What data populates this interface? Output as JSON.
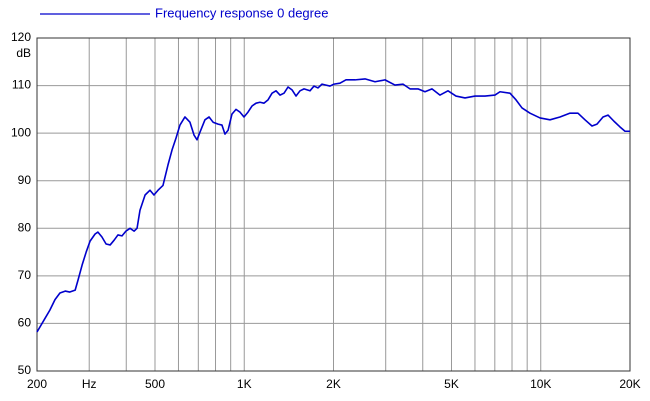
{
  "chart_data": {
    "type": "line",
    "y_label": "dB",
    "xscale": "log",
    "grid": true,
    "xlim": [
      200,
      20000
    ],
    "ylim": [
      50,
      120
    ],
    "yticks": [
      50,
      60,
      70,
      80,
      90,
      100,
      110,
      120
    ],
    "xticks": [
      200,
      {
        "value": 300,
        "label": "Hz"
      },
      500,
      {
        "value": 1000,
        "label": "1K"
      },
      {
        "value": 2000,
        "label": "2K"
      },
      {
        "value": 5000,
        "label": "5K"
      },
      {
        "value": 10000,
        "label": "10K"
      },
      {
        "value": 20000,
        "label": "20K"
      }
    ],
    "xgrid_minor": [
      400,
      600,
      700,
      800,
      900,
      3000,
      4000,
      6000,
      7000,
      8000,
      9000
    ],
    "legend": "top-left",
    "x": [
      200,
      213,
      221,
      230,
      239,
      249,
      258,
      269,
      275,
      284,
      293,
      302,
      314,
      321,
      331,
      342,
      353,
      364,
      375,
      387,
      399,
      412,
      425,
      435,
      445,
      463,
      481,
      496,
      512,
      532,
      553,
      571,
      589,
      607,
      631,
      656,
      677,
      693,
      709,
      737,
      761,
      785,
      816,
      841,
      861,
      882,
      909,
      938,
      968,
      998,
      1029,
      1062,
      1096,
      1130,
      1166,
      1203,
      1241,
      1280,
      1320,
      1362,
      1405,
      1449,
      1495,
      1542,
      1591,
      1666,
      1719,
      1773,
      1829,
      1887,
      1946,
      2008,
      2103,
      2204,
      2363,
      2555,
      2761,
      2984,
      3224,
      3431,
      3623,
      3855,
      4070,
      4297,
      4573,
      4866,
      5178,
      5553,
      6001,
      6487,
      7009,
      7287,
      7875,
      8251,
      8646,
      9200,
      9944,
      10745,
      11610,
      12552,
      13352,
      14100,
      14888,
      15480,
      16220,
      16860,
      17662,
      18508,
      19236,
      20000
    ],
    "series": [
      {
        "name": "Frequency response 0 degree",
        "color": "#0000cc",
        "values": [
          58.2,
          61.1,
          62.8,
          65,
          66.4,
          66.8,
          66.6,
          67,
          69.1,
          72.3,
          75,
          77.3,
          78.8,
          79.2,
          78.2,
          76.7,
          76.5,
          77.5,
          78.6,
          78.4,
          79.4,
          80,
          79.4,
          80,
          83.8,
          87,
          88,
          87,
          88,
          89,
          93.3,
          96.5,
          99,
          101.7,
          103.4,
          102.3,
          99.6,
          98.6,
          100.2,
          102.8,
          103.4,
          102.3,
          101.9,
          101.7,
          99.8,
          100.6,
          104,
          105,
          104.4,
          103.4,
          104.4,
          105.7,
          106.3,
          106.5,
          106.3,
          107,
          108.4,
          108.9,
          108,
          108.4,
          109.7,
          109.1,
          107.8,
          108.9,
          109.3,
          108.9,
          109.9,
          109.5,
          110.3,
          110.1,
          109.9,
          110.3,
          110.5,
          111.2,
          111.2,
          111.4,
          110.8,
          111.2,
          110.1,
          110.3,
          109.3,
          109.3,
          108.7,
          109.3,
          108,
          108.9,
          107.8,
          107.4,
          107.8,
          107.8,
          108,
          108.7,
          108.4,
          107,
          105.3,
          104.2,
          103.2,
          102.8,
          103.4,
          104.2,
          104.2,
          102.8,
          101.5,
          101.9,
          103.4,
          103.8,
          102.5,
          101.3,
          100.4,
          100.4
        ]
      }
    ]
  }
}
